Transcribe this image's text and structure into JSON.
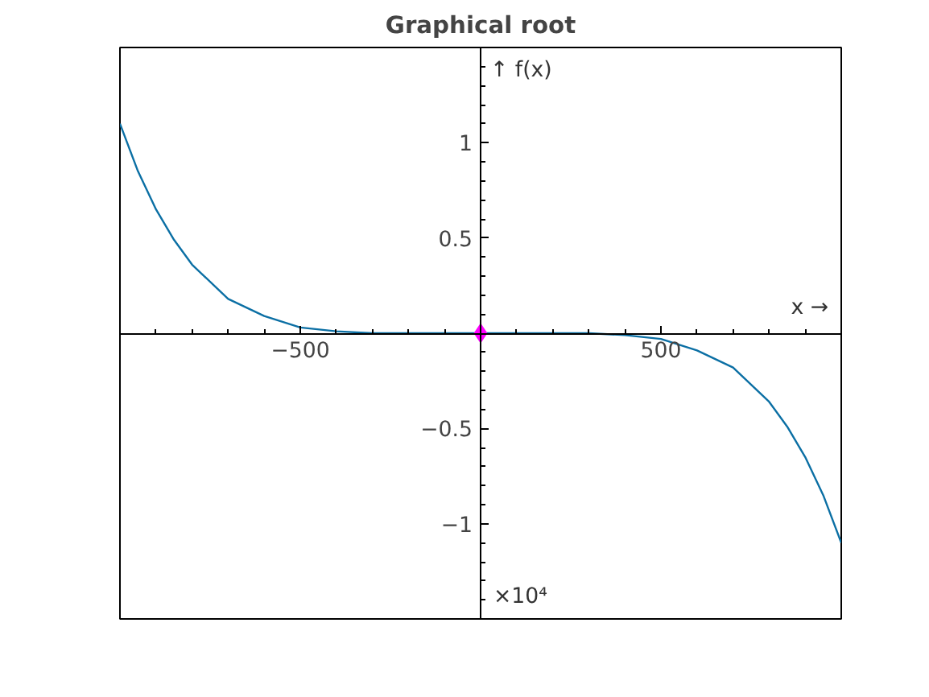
{
  "chart_data": {
    "type": "line",
    "title": "Graphical root",
    "xlabel": "x →",
    "ylabel": "↑ f(x)",
    "annotations": [
      "×10⁴"
    ],
    "x": [
      -1000,
      -950,
      -900,
      -850,
      -800,
      -700,
      -600,
      -500,
      -400,
      -300,
      -200,
      0,
      200,
      300,
      400,
      500,
      600,
      700,
      800,
      850,
      900,
      950,
      1000
    ],
    "series": [
      {
        "color": "#0b6fa4",
        "values": [
          1.1,
          0.85,
          0.65,
          0.49,
          0.36,
          0.18,
          0.09,
          0.03,
          0.01,
          0,
          0,
          0,
          0,
          0,
          -0.01,
          -0.03,
          -0.09,
          -0.18,
          -0.36,
          -0.49,
          -0.65,
          -0.85,
          -1.1
        ]
      },
      {
        "type": "scatter",
        "x": [
          0
        ],
        "values": [
          0
        ],
        "color": "#ff00ff",
        "marker": "diamond"
      }
    ],
    "xlim": [
      -1000,
      1000
    ],
    "ylim": [
      -1.5,
      1.5
    ],
    "xticks": [
      -500,
      500
    ],
    "yticks": [
      -1,
      -0.5,
      0.5,
      1
    ],
    "grid": false
  }
}
